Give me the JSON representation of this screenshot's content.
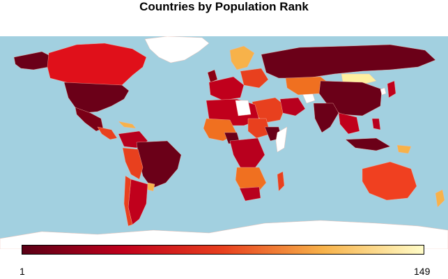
{
  "title": "Countries by Population Rank",
  "legend": {
    "min_label": "1",
    "max_label": "149"
  },
  "colors": {
    "ocean": "#a2d0e0",
    "rank_1": "#6b0018",
    "rank_mid": "#e8401e",
    "rank_149": "#fffcc8",
    "no_data": "#ffffff"
  }
}
